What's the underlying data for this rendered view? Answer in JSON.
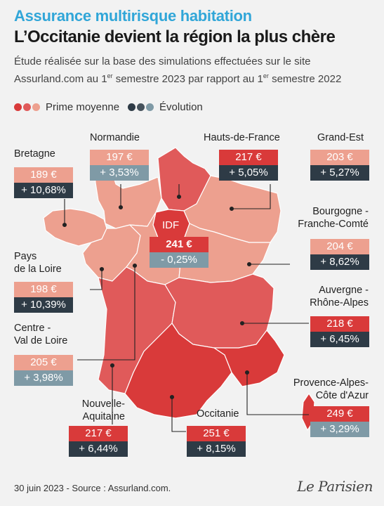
{
  "header": {
    "kicker": "Assurance multirisque habitation",
    "title": "L’Occitanie devient la région la plus chère",
    "intro_line1": "Étude réalisée sur la base des simulations effectuées sur le site",
    "intro_line2_a": "Assurland.com au 1",
    "intro_line2_sup1": "er",
    "intro_line2_b": " semestre 2023 par rapport au 1",
    "intro_line2_sup2": "er",
    "intro_line2_c": " semestre 2022"
  },
  "legend": {
    "prime_label": "Prime moyenne",
    "evolution_label": "Évolution",
    "prime_colors": [
      "#d93a3a",
      "#e05a5a",
      "#eda08f"
    ],
    "evolution_colors": [
      "#2e3b46",
      "#46525c",
      "#7f9aa6"
    ]
  },
  "colors": {
    "price_dark": "#d93a3a",
    "price_mid": "#e05a5a",
    "price_light": "#eda08f",
    "evo_dark": "#2e3b46",
    "evo_light": "#7f9aa6"
  },
  "regions": [
    {
      "id": "bretagne",
      "name": "Bretagne",
      "price": "189 €",
      "evolution": "+ 10,68%"
    },
    {
      "id": "normandie",
      "name": "Normandie",
      "price": "197 €",
      "evolution": "+ 3,53%"
    },
    {
      "id": "hauts-de-france",
      "name": "Hauts-de-France",
      "price": "217 €",
      "evolution": "+ 5,05%"
    },
    {
      "id": "grand-est",
      "name": "Grand-Est",
      "price": "203 €",
      "evolution": "+ 5,27%"
    },
    {
      "id": "idf",
      "name": "IDF",
      "price": "241 €",
      "evolution": "- 0,25%"
    },
    {
      "id": "bourgogne",
      "name_line1": "Bourgogne -",
      "name_line2": "Franche-Comté",
      "price": "204 €",
      "evolution": "+ 8,62%"
    },
    {
      "id": "pays-de-la-loire",
      "name_line1": "Pays",
      "name_line2": "de la Loire",
      "price": "198 €",
      "evolution": "+ 10,39%"
    },
    {
      "id": "auvergne",
      "name_line1": "Auvergne -",
      "name_line2": "Rhône-Alpes",
      "price": "218 €",
      "evolution": "+ 6,45%"
    },
    {
      "id": "centre",
      "name_line1": "Centre -",
      "name_line2": "Val de Loire",
      "price": "205 €",
      "evolution": "+ 3,98%"
    },
    {
      "id": "paca",
      "name_line1": "Provence-Alpes-",
      "name_line2": "Côte d'Azur",
      "price": "249 €",
      "evolution": "+ 3,29%"
    },
    {
      "id": "nouvelle-aquitaine",
      "name_line1": "Nouvelle-",
      "name_line2": "Aquitaine",
      "price": "217 €",
      "evolution": "+ 6,44%"
    },
    {
      "id": "occitanie",
      "name": "Occitanie",
      "price": "251 €",
      "evolution": "+ 8,15%"
    }
  ],
  "footer": {
    "source": "30 juin 2023 - Source : Assurland.com.",
    "brand": "Le Parisien"
  }
}
